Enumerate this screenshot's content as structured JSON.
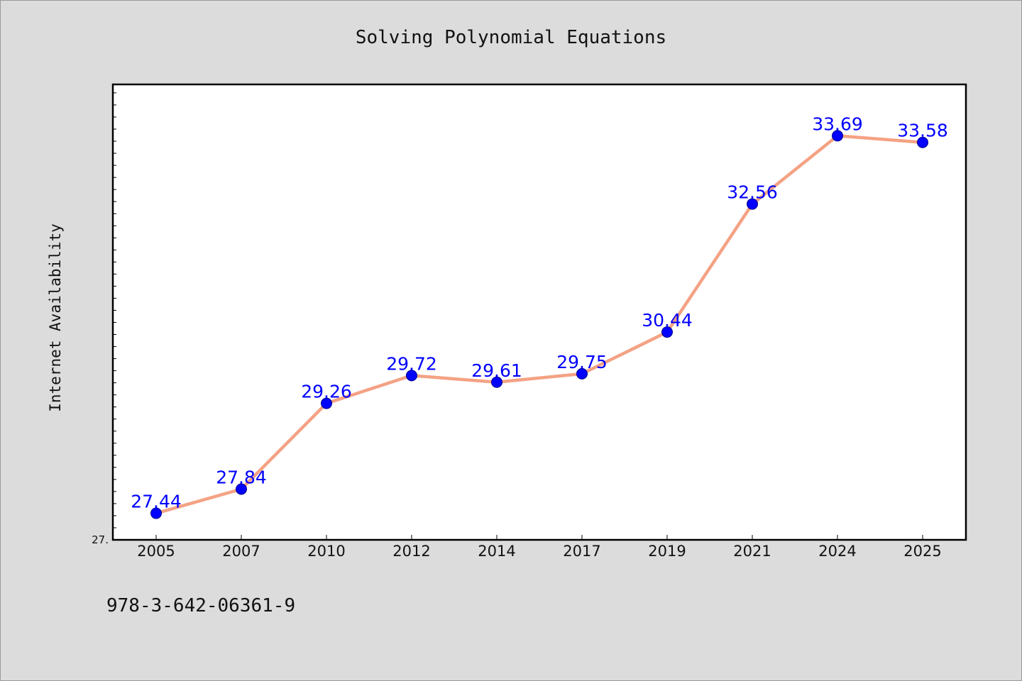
{
  "chart_data": {
    "type": "line",
    "title": "Solving Polynomial Equations",
    "ylabel": "Internet Availability",
    "xlabel": "",
    "categories": [
      "2005",
      "2007",
      "2010",
      "2012",
      "2014",
      "2017",
      "2019",
      "2021",
      "2024",
      "2025"
    ],
    "values": [
      27.44,
      27.84,
      29.26,
      29.72,
      29.61,
      29.75,
      30.44,
      32.56,
      33.69,
      33.58
    ],
    "data_labels": [
      "27.44",
      "27.84",
      "29.26",
      "29.72",
      "29.61",
      "29.75",
      "30.44",
      "32.56",
      "33.69",
      "33.58"
    ],
    "y_tick_label": "27.",
    "ylim": [
      27.0,
      34.54
    ],
    "grid": false,
    "legend": "none",
    "line_color": "#f4a284",
    "marker_color": "#0000ff",
    "label_color": "#0000ff"
  },
  "footer_text": "978-3-642-06361-9"
}
